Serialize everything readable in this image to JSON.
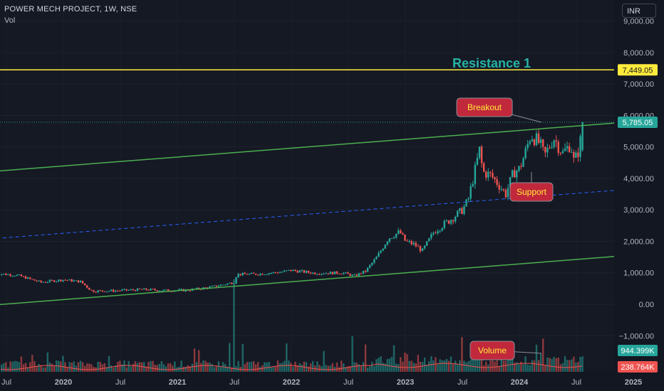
{
  "header": {
    "symbol_line": "POWER MECH PROJECT, 1W, NSE",
    "indicator": "Vol"
  },
  "currency_button": "INR",
  "colors": {
    "bg": "#131722",
    "up": "#26a69a",
    "down": "#ef5350",
    "channel": "#4caf50",
    "resistance": "#ffeb3b",
    "midline": "#2962ff",
    "callout": "#c2283b",
    "resistance_label": "#26b3a5"
  },
  "chart_data": {
    "type": "candlestick",
    "y_axis": {
      "min": -1000,
      "max": 9000,
      "ticks": [
        9000,
        8000,
        7000,
        6000,
        5000,
        4000,
        3000,
        2000,
        1000,
        0,
        -1000
      ],
      "tick_labels": [
        "9,000.00",
        "8,000.00",
        "7,000.00",
        "6,000.00",
        "5,000.00",
        "4,000.00",
        "3,000.00",
        "2,000.00",
        "1,000.00",
        "0.00",
        "−1,000.00"
      ]
    },
    "x_axis": {
      "labels": [
        "Jul",
        "2020",
        "Jul",
        "2021",
        "Jul",
        "2022",
        "Jul",
        "2023",
        "Jul",
        "2024",
        "Jul",
        "2025"
      ],
      "dates": [
        2019.5,
        2020.0,
        2020.5,
        2021.0,
        2021.5,
        2022.0,
        2022.5,
        2023.0,
        2023.5,
        2024.0,
        2024.5,
        2025.0
      ]
    },
    "price_path": [
      [
        2019.4,
        980
      ],
      [
        2019.6,
        920
      ],
      [
        2019.8,
        700
      ],
      [
        2020.0,
        780
      ],
      [
        2020.15,
        720
      ],
      [
        2020.25,
        420
      ],
      [
        2020.45,
        430
      ],
      [
        2020.7,
        470
      ],
      [
        2020.9,
        440
      ],
      [
        2021.1,
        450
      ],
      [
        2021.3,
        550
      ],
      [
        2021.5,
        700
      ],
      [
        2021.52,
        950
      ],
      [
        2021.7,
        960
      ],
      [
        2021.9,
        1020
      ],
      [
        2022.0,
        1080
      ],
      [
        2022.2,
        990
      ],
      [
        2022.45,
        1000
      ],
      [
        2022.55,
        900
      ],
      [
        2022.65,
        1050
      ],
      [
        2022.75,
        1500
      ],
      [
        2022.85,
        2100
      ],
      [
        2022.95,
        2300
      ],
      [
        2023.0,
        2000
      ],
      [
        2023.08,
        1900
      ],
      [
        2023.15,
        1700
      ],
      [
        2023.25,
        2300
      ],
      [
        2023.32,
        2500
      ],
      [
        2023.4,
        2700
      ],
      [
        2023.5,
        3000
      ],
      [
        2023.55,
        3300
      ],
      [
        2023.62,
        4400
      ],
      [
        2023.65,
        4900
      ],
      [
        2023.68,
        4200
      ],
      [
        2023.75,
        4100
      ],
      [
        2023.82,
        3800
      ],
      [
        2023.88,
        3500
      ],
      [
        2023.95,
        4200
      ],
      [
        2024.0,
        4300
      ],
      [
        2024.05,
        4800
      ],
      [
        2024.1,
        5400
      ],
      [
        2024.18,
        5100
      ],
      [
        2024.22,
        4700
      ],
      [
        2024.3,
        5300
      ],
      [
        2024.38,
        4800
      ],
      [
        2024.45,
        5100
      ],
      [
        2024.48,
        4500
      ],
      [
        2024.52,
        4900
      ],
      [
        2024.55,
        5500
      ],
      [
        2024.57,
        5785
      ]
    ],
    "lines": [
      {
        "name": "upper-channel",
        "from": [
          2019.3,
          4200
        ],
        "to": [
          2025.05,
          5820
        ]
      },
      {
        "name": "lower-channel",
        "from": [
          2019.3,
          -50
        ],
        "to": [
          2025.05,
          1580
        ]
      },
      {
        "name": "mid-channel",
        "from": [
          2019.3,
          2060
        ],
        "to": [
          2025.05,
          3680
        ]
      },
      {
        "name": "resistance",
        "level": 7449.05
      }
    ],
    "price_labels": [
      {
        "value": "7,449.05",
        "kind": "resistance"
      },
      {
        "value": "5,785.05",
        "kind": "last"
      }
    ],
    "volume_labels": [
      {
        "value": "944.399K",
        "kind": "up"
      },
      {
        "value": "238.764K",
        "kind": "ma"
      }
    ],
    "annotations": {
      "resistance": "Resistance 1",
      "breakout": "Breakout",
      "support": "Support",
      "volume": "Volume"
    }
  }
}
